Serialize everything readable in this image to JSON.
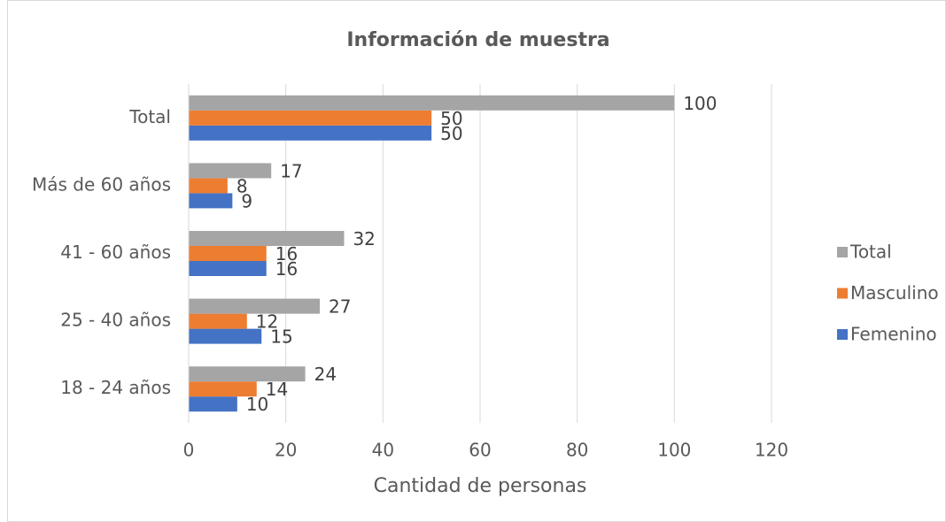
{
  "chart_data": {
    "type": "bar",
    "orientation": "horizontal",
    "title": "Información de muestra",
    "xlabel": "Cantidad de personas",
    "categories": [
      "18 - 24 años",
      "25 - 40 años",
      "41 - 60 años",
      "Más de 60 años",
      "Total"
    ],
    "series": [
      {
        "name": "Femenino",
        "color": "#4472c4",
        "values": [
          10,
          15,
          16,
          9,
          50
        ]
      },
      {
        "name": "Masculino",
        "color": "#ed7d31",
        "values": [
          14,
          12,
          16,
          8,
          50
        ]
      },
      {
        "name": "Total",
        "color": "#a5a5a5",
        "values": [
          24,
          27,
          32,
          17,
          100
        ]
      }
    ],
    "xlim": [
      0,
      120
    ],
    "xticks": [
      0,
      20,
      40,
      60,
      80,
      100,
      120
    ],
    "grid": true,
    "legend": "right"
  }
}
